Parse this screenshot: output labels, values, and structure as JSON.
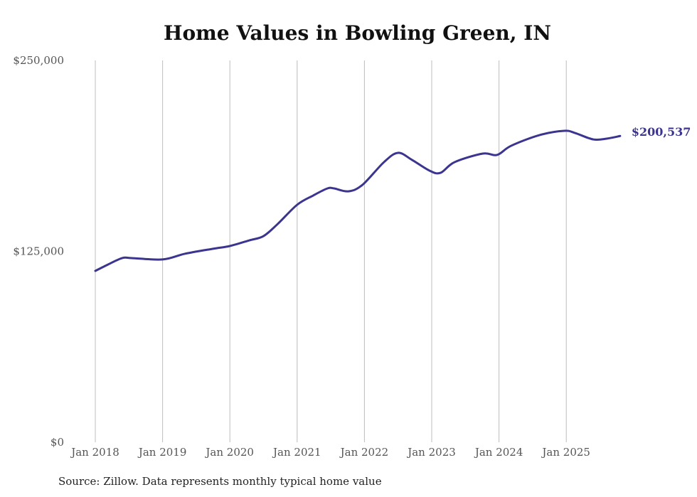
{
  "chart_data": {
    "type": "line",
    "title": "Home Values in Bowling Green, IN",
    "xlabel": "",
    "ylabel": "",
    "ylim": [
      0,
      250000
    ],
    "y_ticks": [
      {
        "value": 0,
        "label": "$0"
      },
      {
        "value": 125000,
        "label": "$125,000"
      },
      {
        "value": 250000,
        "label": "$250,000"
      }
    ],
    "x_ticks": [
      {
        "value": 2018.0,
        "label": "Jan 2018"
      },
      {
        "value": 2019.0,
        "label": "Jan 2019"
      },
      {
        "value": 2020.0,
        "label": "Jan 2020"
      },
      {
        "value": 2021.0,
        "label": "Jan 2021"
      },
      {
        "value": 2022.0,
        "label": "Jan 2022"
      },
      {
        "value": 2023.0,
        "label": "Jan 2023"
      },
      {
        "value": 2024.0,
        "label": "Jan 2024"
      },
      {
        "value": 2025.0,
        "label": "Jan 2025"
      }
    ],
    "grid": "vertical",
    "series": [
      {
        "name": "Typical home value",
        "color": "#3b3590",
        "end_label": "$200,537",
        "x": [
          2018.0,
          2018.19,
          2018.4,
          2018.54,
          2019.0,
          2019.33,
          2019.75,
          2020.0,
          2020.29,
          2020.5,
          2020.71,
          2021.0,
          2021.24,
          2021.45,
          2021.55,
          2021.76,
          2021.97,
          2022.29,
          2022.5,
          2022.71,
          2022.97,
          2023.13,
          2023.34,
          2023.76,
          2023.97,
          2024.18,
          2024.6,
          2024.97,
          2025.13,
          2025.4,
          2025.6,
          2025.8
        ],
        "values": [
          112200,
          116400,
          120600,
          120600,
          119700,
          123400,
          126700,
          128500,
          132200,
          135000,
          142900,
          155500,
          161600,
          166200,
          166200,
          164300,
          168500,
          183400,
          189500,
          184800,
          177800,
          176400,
          183400,
          189000,
          188100,
          194100,
          201100,
          203900,
          202500,
          198300,
          198800,
          200537
        ]
      }
    ]
  },
  "footer": {
    "source": "Source: Zillow. Data represents monthly typical home value"
  }
}
